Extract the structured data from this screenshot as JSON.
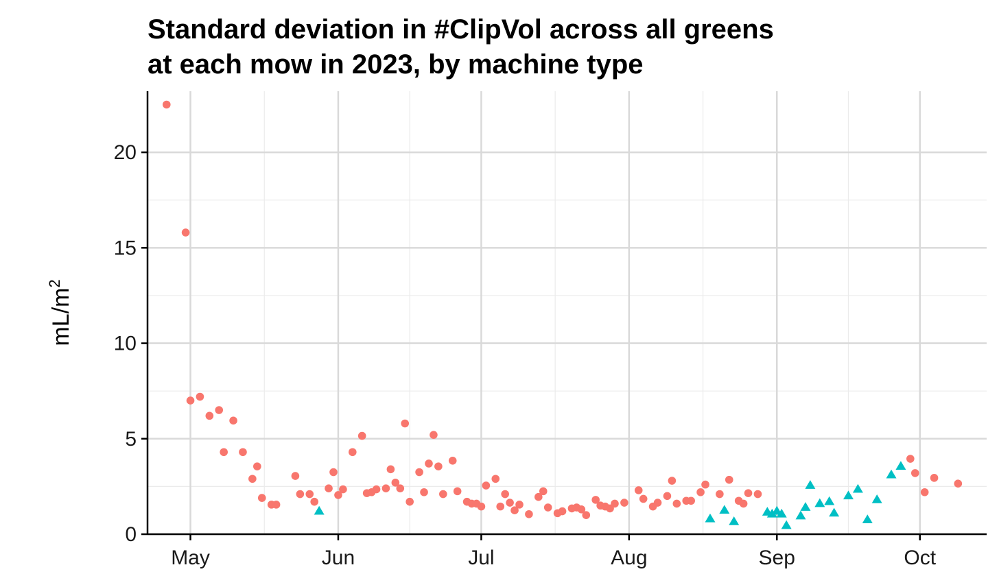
{
  "chart_data": {
    "type": "scatter",
    "title_lines": [
      "Standard deviation in #ClipVol across all greens",
      "at each mow in 2023, by machine type"
    ],
    "ylabel_base": "mL/m",
    "ylabel_sup": "2",
    "xlabel": "",
    "x_type": "date",
    "xlim": [
      "2023-04-22",
      "2023-10-15"
    ],
    "ylim": [
      0,
      23.2
    ],
    "x_ticks": [
      {
        "date": "2023-05-01",
        "label": "May"
      },
      {
        "date": "2023-06-01",
        "label": "Jun"
      },
      {
        "date": "2023-07-01",
        "label": "Jul"
      },
      {
        "date": "2023-08-01",
        "label": "Aug"
      },
      {
        "date": "2023-09-01",
        "label": "Sep"
      },
      {
        "date": "2023-10-01",
        "label": "Oct"
      }
    ],
    "y_ticks": [
      0,
      5,
      10,
      15,
      20
    ],
    "grid": true,
    "legend": "none",
    "series": [
      {
        "color": "#f8766d",
        "marker": "circle",
        "points": [
          [
            "2023-04-26",
            22.5
          ],
          [
            "2023-04-30",
            15.8
          ],
          [
            "2023-05-01",
            7.0
          ],
          [
            "2023-05-03",
            7.2
          ],
          [
            "2023-05-05",
            6.2
          ],
          [
            "2023-05-07",
            6.5
          ],
          [
            "2023-05-08",
            4.3
          ],
          [
            "2023-05-10",
            5.95
          ],
          [
            "2023-05-12",
            4.3
          ],
          [
            "2023-05-14",
            2.9
          ],
          [
            "2023-05-15",
            3.55
          ],
          [
            "2023-05-16",
            1.9
          ],
          [
            "2023-05-18",
            1.55
          ],
          [
            "2023-05-19",
            1.55
          ],
          [
            "2023-05-23",
            3.05
          ],
          [
            "2023-05-24",
            2.1
          ],
          [
            "2023-05-26",
            2.1
          ],
          [
            "2023-05-27",
            1.7
          ],
          [
            "2023-05-30",
            2.4
          ],
          [
            "2023-05-31",
            3.25
          ],
          [
            "2023-06-01",
            2.05
          ],
          [
            "2023-06-02",
            2.35
          ],
          [
            "2023-06-04",
            4.3
          ],
          [
            "2023-06-06",
            5.15
          ],
          [
            "2023-06-07",
            2.15
          ],
          [
            "2023-06-08",
            2.2
          ],
          [
            "2023-06-09",
            2.35
          ],
          [
            "2023-06-11",
            2.4
          ],
          [
            "2023-06-12",
            3.4
          ],
          [
            "2023-06-13",
            2.7
          ],
          [
            "2023-06-14",
            2.4
          ],
          [
            "2023-06-15",
            5.8
          ],
          [
            "2023-06-16",
            1.7
          ],
          [
            "2023-06-18",
            3.25
          ],
          [
            "2023-06-19",
            2.2
          ],
          [
            "2023-06-20",
            3.7
          ],
          [
            "2023-06-21",
            5.2
          ],
          [
            "2023-06-22",
            3.55
          ],
          [
            "2023-06-23",
            2.1
          ],
          [
            "2023-06-25",
            3.85
          ],
          [
            "2023-06-26",
            2.25
          ],
          [
            "2023-06-28",
            1.7
          ],
          [
            "2023-06-29",
            1.6
          ],
          [
            "2023-06-30",
            1.6
          ],
          [
            "2023-07-01",
            1.45
          ],
          [
            "2023-07-02",
            2.55
          ],
          [
            "2023-07-04",
            2.9
          ],
          [
            "2023-07-05",
            1.45
          ],
          [
            "2023-07-06",
            2.1
          ],
          [
            "2023-07-07",
            1.65
          ],
          [
            "2023-07-08",
            1.25
          ],
          [
            "2023-07-09",
            1.55
          ],
          [
            "2023-07-11",
            1.05
          ],
          [
            "2023-07-13",
            1.95
          ],
          [
            "2023-07-14",
            2.25
          ],
          [
            "2023-07-15",
            1.4
          ],
          [
            "2023-07-17",
            1.1
          ],
          [
            "2023-07-18",
            1.2
          ],
          [
            "2023-07-20",
            1.35
          ],
          [
            "2023-07-21",
            1.4
          ],
          [
            "2023-07-22",
            1.3
          ],
          [
            "2023-07-23",
            1.0
          ],
          [
            "2023-07-25",
            1.8
          ],
          [
            "2023-07-26",
            1.5
          ],
          [
            "2023-07-27",
            1.45
          ],
          [
            "2023-07-28",
            1.35
          ],
          [
            "2023-07-29",
            1.6
          ],
          [
            "2023-07-31",
            1.65
          ],
          [
            "2023-08-03",
            2.3
          ],
          [
            "2023-08-04",
            1.85
          ],
          [
            "2023-08-06",
            1.45
          ],
          [
            "2023-08-07",
            1.65
          ],
          [
            "2023-08-09",
            2.0
          ],
          [
            "2023-08-10",
            2.8
          ],
          [
            "2023-08-11",
            1.6
          ],
          [
            "2023-08-13",
            1.75
          ],
          [
            "2023-08-14",
            1.75
          ],
          [
            "2023-08-16",
            2.2
          ],
          [
            "2023-08-17",
            2.6
          ],
          [
            "2023-08-20",
            2.1
          ],
          [
            "2023-08-22",
            2.85
          ],
          [
            "2023-08-24",
            1.75
          ],
          [
            "2023-08-25",
            1.6
          ],
          [
            "2023-08-26",
            2.15
          ],
          [
            "2023-08-28",
            2.1
          ],
          [
            "2023-09-29",
            3.95
          ],
          [
            "2023-09-30",
            3.2
          ],
          [
            "2023-10-02",
            2.2
          ],
          [
            "2023-10-04",
            2.95
          ],
          [
            "2023-10-09",
            2.65
          ]
        ]
      },
      {
        "color": "#00bfc4",
        "marker": "triangle",
        "points": [
          [
            "2023-05-28",
            1.2
          ],
          [
            "2023-08-18",
            0.8
          ],
          [
            "2023-08-21",
            1.25
          ],
          [
            "2023-08-23",
            0.65
          ],
          [
            "2023-08-30",
            1.15
          ],
          [
            "2023-08-31",
            1.05
          ],
          [
            "2023-09-01",
            1.2
          ],
          [
            "2023-09-02",
            1.05
          ],
          [
            "2023-09-03",
            0.45
          ],
          [
            "2023-09-06",
            0.95
          ],
          [
            "2023-09-07",
            1.4
          ],
          [
            "2023-09-08",
            2.55
          ],
          [
            "2023-09-10",
            1.6
          ],
          [
            "2023-09-12",
            1.7
          ],
          [
            "2023-09-13",
            1.1
          ],
          [
            "2023-09-16",
            2.0
          ],
          [
            "2023-09-18",
            2.35
          ],
          [
            "2023-09-20",
            0.75
          ],
          [
            "2023-09-22",
            1.8
          ],
          [
            "2023-09-25",
            3.1
          ],
          [
            "2023-09-27",
            3.55
          ]
        ]
      }
    ]
  }
}
